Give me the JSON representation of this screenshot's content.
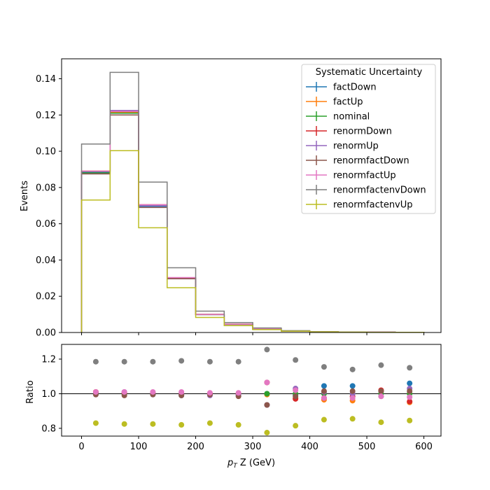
{
  "chart_data": [
    {
      "type": "step",
      "xlabel_prefix": "p",
      "xlabel_sub": "T",
      "xlabel_suffix": " Z (GeV)",
      "ylabel": "Events",
      "xlim": [
        -35,
        630
      ],
      "ylim": [
        0,
        0.151
      ],
      "bin_edges": [
        0,
        50,
        100,
        150,
        200,
        250,
        300,
        350,
        400,
        450,
        500,
        550,
        600
      ],
      "x_ticks": [
        0,
        100,
        200,
        300,
        400,
        500,
        600
      ],
      "y_ticks": [
        "0.00",
        "0.02",
        "0.04",
        "0.06",
        "0.08",
        "0.10",
        "0.12",
        "0.14"
      ],
      "legend": {
        "title": "Systematic Uncertainty",
        "placement": "upper right"
      },
      "series": [
        {
          "name": "factDown",
          "color": "#1f77b4",
          "values": [
            0.0885,
            0.121,
            0.0696,
            0.0297,
            0.0099,
            0.0045,
            0.0019,
            0.0008,
            0.0004,
            0.00024,
            0.00015,
            0.0001
          ]
        },
        {
          "name": "factUp",
          "color": "#ff7f0e",
          "values": [
            0.089,
            0.1215,
            0.07,
            0.0299,
            0.01,
            0.0046,
            0.0019,
            0.0008,
            0.00037,
            0.00022,
            0.00014,
            9e-05
          ]
        },
        {
          "name": "nominal",
          "color": "#2ca02c",
          "values": [
            0.088,
            0.121,
            0.07,
            0.03,
            0.01,
            0.0046,
            0.002,
            0.0008,
            0.00038,
            0.00023,
            0.00014,
            0.0001
          ]
        },
        {
          "name": "renormDown",
          "color": "#d62728",
          "values": [
            0.089,
            0.122,
            0.0705,
            0.03,
            0.01,
            0.0046,
            0.0021,
            0.0008,
            0.00037,
            0.00023,
            0.00014,
            9e-05
          ]
        },
        {
          "name": "renormUp",
          "color": "#9467bd",
          "values": [
            0.0875,
            0.1225,
            0.07,
            0.0297,
            0.0099,
            0.0045,
            0.0019,
            0.0008,
            0.00038,
            0.00023,
            0.00014,
            0.0001
          ]
        },
        {
          "name": "renormfactDown",
          "color": "#8c564b",
          "values": [
            0.0875,
            0.12,
            0.069,
            0.0297,
            0.0099,
            0.0045,
            0.0019,
            0.0008,
            0.00039,
            0.00023,
            0.00014,
            0.0001
          ]
        },
        {
          "name": "renormfactUp",
          "color": "#e377c2",
          "values": [
            0.089,
            0.122,
            0.0705,
            0.0303,
            0.01,
            0.0046,
            0.0021,
            0.0008,
            0.00038,
            0.00023,
            0.00014,
            0.0001
          ]
        },
        {
          "name": "renormfactenvDown",
          "color": "#7f7f7f",
          "values": [
            0.104,
            0.1435,
            0.083,
            0.0357,
            0.0118,
            0.0055,
            0.0025,
            0.001,
            0.00044,
            0.00026,
            0.00016,
            0.00012
          ]
        },
        {
          "name": "renormfactenvUp",
          "color": "#bcbd22",
          "values": [
            0.0731,
            0.1003,
            0.0578,
            0.0247,
            0.0083,
            0.0038,
            0.0016,
            0.0007,
            0.00032,
            0.0002,
            0.00012,
            8e-05
          ]
        }
      ]
    },
    {
      "type": "scatter",
      "xlabel_prefix": "p",
      "xlabel_sub": "T",
      "xlabel_suffix": " Z (GeV)",
      "ylabel": "Ratio",
      "xlim": [
        -35,
        630
      ],
      "ylim": [
        0.755,
        1.285
      ],
      "x_ticks": [
        0,
        100,
        200,
        300,
        400,
        500,
        600
      ],
      "y_ticks": [
        "0.8",
        "1.0",
        "1.2"
      ],
      "reference_line": 1.0,
      "x": [
        25,
        75,
        125,
        175,
        225,
        275,
        325,
        375,
        425,
        475,
        525,
        575
      ],
      "series": [
        {
          "name": "factDown",
          "color": "#1f77b4",
          "values": [
            1.005,
            1.0,
            0.995,
            0.99,
            0.995,
            0.99,
            1.0,
            0.99,
            1.045,
            1.045,
            1.015,
            1.06
          ]
        },
        {
          "name": "factUp",
          "color": "#ff7f0e",
          "values": [
            1.01,
            1.005,
            1.0,
            0.995,
            1.0,
            1.0,
            0.995,
            0.975,
            0.965,
            0.96,
            0.985,
            0.95
          ]
        },
        {
          "name": "nominal",
          "color": "#2ca02c",
          "values": [
            1.0,
            1.0,
            1.0,
            1.0,
            1.0,
            1.0,
            1.0,
            1.0,
            1.0,
            1.0,
            1.0,
            1.0
          ]
        },
        {
          "name": "renormDown",
          "color": "#d62728",
          "values": [
            1.01,
            1.005,
            1.005,
            1.0,
            1.0,
            1.0,
            1.065,
            0.97,
            0.975,
            0.985,
            1.02,
            0.955
          ]
        },
        {
          "name": "renormUp",
          "color": "#9467bd",
          "values": [
            0.995,
            1.01,
            1.0,
            0.995,
            0.99,
            0.995,
            0.935,
            1.03,
            1.01,
            1.0,
            0.985,
            1.03
          ]
        },
        {
          "name": "renormfactDown",
          "color": "#8c564b",
          "values": [
            0.995,
            0.99,
            0.995,
            0.99,
            0.995,
            0.985,
            0.935,
            0.985,
            1.015,
            1.015,
            1.015,
            1.015
          ]
        },
        {
          "name": "renormfactUp",
          "color": "#e377c2",
          "values": [
            1.01,
            1.01,
            1.01,
            1.01,
            1.005,
            1.005,
            1.065,
            1.02,
            0.975,
            0.975,
            0.985,
            0.98
          ]
        },
        {
          "name": "renormfactenvDown",
          "color": "#7f7f7f",
          "values": [
            1.185,
            1.185,
            1.185,
            1.19,
            1.185,
            1.185,
            1.255,
            1.195,
            1.155,
            1.14,
            1.165,
            1.15
          ]
        },
        {
          "name": "renormfactenvUp",
          "color": "#bcbd22",
          "values": [
            0.83,
            0.825,
            0.825,
            0.82,
            0.83,
            0.82,
            0.775,
            0.815,
            0.85,
            0.855,
            0.835,
            0.845
          ]
        }
      ]
    }
  ]
}
